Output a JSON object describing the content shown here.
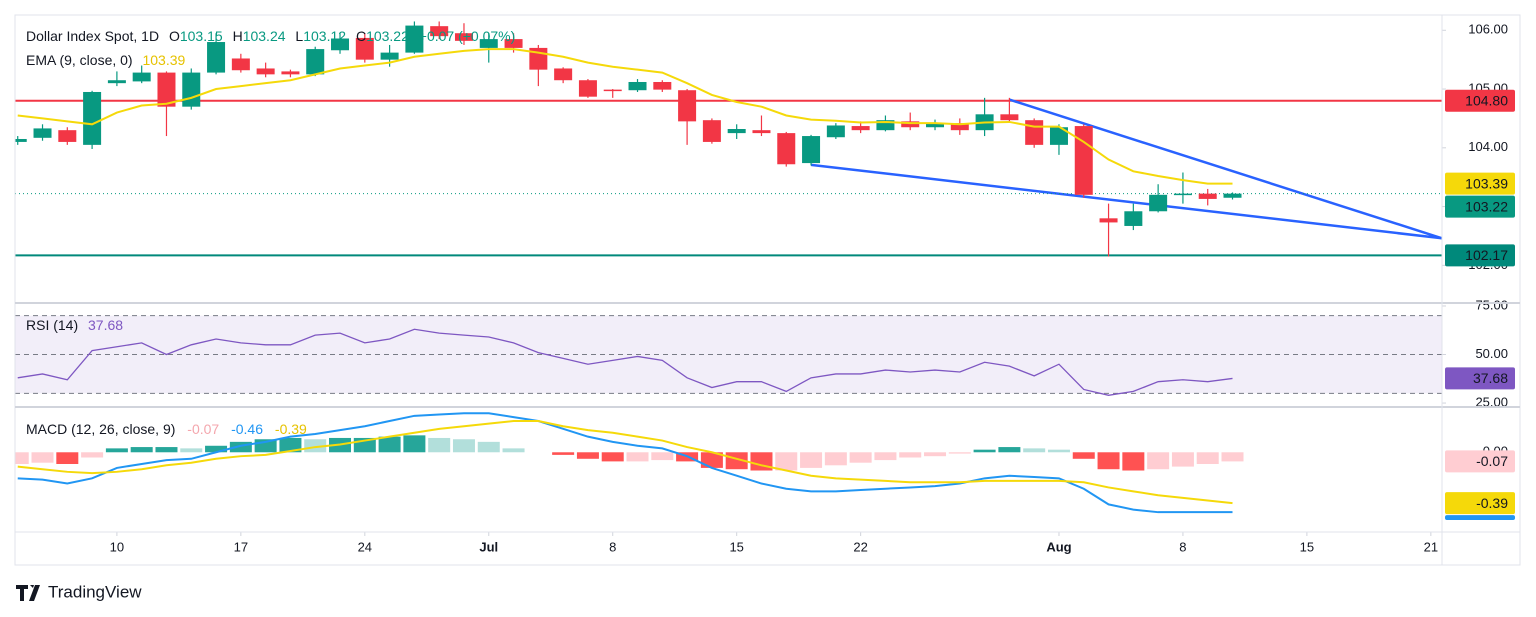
{
  "chart_data": [
    {
      "type": "candlestick",
      "title": "Dollar Index Spot, 1D",
      "ohlc_labels": [
        "O",
        "H",
        "L",
        "C"
      ],
      "change": "+0.07 (+0.07%)",
      "up_color": "#089981",
      "down_color": "#f23645",
      "open": [
        104.1,
        104.17,
        104.3,
        104.05,
        105.1,
        105.13,
        105.28,
        104.7,
        105.28,
        105.52,
        105.35,
        105.3,
        105.25,
        105.66,
        105.87,
        105.5,
        105.62,
        106.07,
        105.95,
        105.7,
        105.85,
        105.7,
        105.35,
        105.15,
        104.99,
        104.98,
        105.12,
        104.98,
        104.47,
        104.25,
        104.3,
        104.25,
        103.74,
        104.18,
        104.37,
        104.3,
        104.45,
        104.35,
        104.42,
        104.3,
        104.57,
        104.47,
        104.05,
        104.37,
        102.8,
        102.67,
        102.92,
        103.2,
        103.22,
        103.15
      ],
      "high": [
        104.2,
        104.4,
        104.35,
        104.97,
        105.3,
        105.4,
        105.3,
        105.35,
        105.95,
        105.6,
        105.45,
        105.33,
        105.72,
        105.95,
        105.95,
        105.75,
        106.15,
        106.15,
        106.12,
        105.95,
        105.95,
        105.75,
        105.37,
        105.17,
        105.0,
        105.17,
        105.15,
        105.0,
        104.5,
        104.4,
        104.55,
        104.27,
        104.22,
        104.42,
        104.45,
        104.55,
        104.6,
        104.48,
        104.5,
        104.85,
        104.85,
        104.5,
        104.4,
        104.4,
        103.05,
        103.05,
        103.38,
        103.58,
        103.3,
        103.24
      ],
      "low": [
        104.05,
        104.12,
        104.05,
        103.98,
        105.05,
        105.1,
        104.2,
        104.65,
        105.25,
        105.28,
        105.2,
        105.2,
        105.22,
        105.6,
        105.45,
        105.38,
        105.6,
        105.85,
        105.75,
        105.45,
        105.62,
        105.05,
        105.1,
        104.85,
        104.85,
        104.95,
        104.95,
        104.05,
        104.07,
        104.15,
        104.2,
        103.68,
        103.7,
        104.15,
        104.25,
        104.28,
        104.3,
        104.3,
        104.22,
        104.2,
        104.45,
        104.0,
        103.88,
        103.15,
        102.15,
        102.6,
        102.9,
        103.05,
        103.02,
        103.12
      ],
      "close": [
        104.15,
        104.33,
        104.1,
        104.95,
        105.15,
        105.28,
        104.7,
        105.28,
        105.8,
        105.32,
        105.25,
        105.25,
        105.68,
        105.86,
        105.5,
        105.62,
        106.08,
        105.9,
        105.82,
        105.85,
        105.7,
        105.33,
        105.15,
        104.87,
        104.98,
        105.12,
        104.99,
        104.45,
        104.1,
        104.32,
        104.25,
        103.72,
        104.2,
        104.38,
        104.3,
        104.47,
        104.35,
        104.42,
        104.3,
        104.57,
        104.47,
        104.05,
        104.35,
        103.2,
        102.73,
        102.92,
        103.2,
        103.22,
        103.13,
        103.22
      ],
      "overlays": [
        {
          "name": "EMA (9, close, 0)",
          "color": "#f5d90a",
          "values": [
            104.55,
            104.5,
            104.45,
            104.4,
            104.6,
            104.72,
            104.75,
            104.85,
            105.0,
            105.05,
            105.1,
            105.15,
            105.25,
            105.35,
            105.4,
            105.45,
            105.55,
            105.6,
            105.65,
            105.68,
            105.68,
            105.62,
            105.55,
            105.45,
            105.38,
            105.33,
            105.28,
            105.1,
            104.9,
            104.78,
            104.7,
            104.55,
            104.48,
            104.46,
            104.43,
            104.44,
            104.42,
            104.42,
            104.4,
            104.43,
            104.44,
            104.36,
            104.36,
            104.1,
            103.8,
            103.6,
            103.52,
            103.45,
            103.39,
            103.39
          ]
        }
      ],
      "levels": [
        {
          "value": 104.8,
          "label": "104.80",
          "color": "#f23645"
        },
        {
          "value": 102.17,
          "label": "102.17",
          "color": "#00897b"
        }
      ],
      "trendlines": [
        {
          "x": [
            40,
            57.45
          ],
          "y": [
            104.82,
            102.46
          ],
          "color": "#2962ff"
        },
        {
          "x": [
            32,
            57.45
          ],
          "y": [
            103.71,
            102.46
          ],
          "color": "#2962ff"
        }
      ],
      "xlim": [
        -0.11,
        57.45
      ],
      "xticks": [
        {
          "value": 4,
          "label": "10"
        },
        {
          "value": 9,
          "label": "17"
        },
        {
          "value": 14,
          "label": "24"
        },
        {
          "value": 19,
          "label": "Jul"
        },
        {
          "value": 24,
          "label": "8"
        },
        {
          "value": 29,
          "label": "15"
        },
        {
          "value": 34,
          "label": "22"
        },
        {
          "value": 42,
          "label": "Aug"
        },
        {
          "value": 47,
          "label": "8"
        },
        {
          "value": 52,
          "label": "15"
        },
        {
          "value": 57,
          "label": "21"
        }
      ],
      "ylim": [
        101.41,
        106.26
      ],
      "yticks": [
        {
          "value": 106,
          "label": "106.00"
        },
        {
          "value": 105,
          "label": "105.00"
        },
        {
          "value": 104,
          "label": "104.00"
        },
        {
          "value": 103,
          "label": "103.00"
        },
        {
          "value": 102,
          "label": "102.00"
        }
      ]
    },
    {
      "type": "line",
      "series": [
        {
          "name": "RSI (14)",
          "color": "#7e57c2",
          "values": [
            38,
            40,
            37,
            52,
            54,
            56,
            50,
            55,
            58,
            56,
            55,
            55,
            60,
            61,
            56,
            58,
            63,
            61,
            60,
            59,
            56,
            51,
            48,
            45,
            47,
            49,
            47,
            38,
            33,
            36,
            36,
            31,
            38,
            40,
            40,
            42,
            41,
            42,
            41,
            46,
            44,
            39,
            45,
            32,
            29,
            31,
            36,
            37,
            36,
            37.68
          ]
        }
      ],
      "bands": [
        30,
        50,
        70
      ],
      "ylim": [
        24,
        75.5
      ],
      "yticks": [
        {
          "value": 75,
          "label": "75.00"
        },
        {
          "value": 50,
          "label": "50.00"
        },
        {
          "value": 25,
          "label": "25.00"
        }
      ]
    },
    {
      "type": "macd",
      "title": "MACD (12, 26, close, 9)",
      "series": [
        {
          "name": "histogram",
          "color": "#ffcdd2",
          "colors": [
            "#26a69a",
            "#b2dfdb",
            "#ff5252",
            "#ffcdd2"
          ],
          "values": [
            -0.09,
            -0.08,
            -0.09,
            -0.04,
            0.03,
            0.04,
            0.04,
            0.03,
            0.05,
            0.08,
            0.1,
            0.11,
            0.1,
            0.11,
            0.11,
            0.12,
            0.13,
            0.11,
            0.1,
            0.08,
            0.03,
            0.0,
            -0.02,
            -0.05,
            -0.07,
            -0.07,
            -0.06,
            -0.07,
            -0.12,
            -0.13,
            -0.14,
            -0.14,
            -0.12,
            -0.1,
            -0.08,
            -0.06,
            -0.04,
            -0.03,
            -0.01,
            0.02,
            0.04,
            0.03,
            0.02,
            -0.05,
            -0.13,
            -0.14,
            -0.13,
            -0.11,
            -0.09,
            -0.07
          ]
        },
        {
          "name": "macd",
          "color": "#2196f3",
          "values": [
            -0.2,
            -0.21,
            -0.24,
            -0.2,
            -0.12,
            -0.09,
            -0.06,
            -0.05,
            0.0,
            0.05,
            0.08,
            0.12,
            0.14,
            0.17,
            0.2,
            0.24,
            0.28,
            0.29,
            0.3,
            0.3,
            0.27,
            0.24,
            0.18,
            0.12,
            0.08,
            0.05,
            0.03,
            -0.03,
            -0.12,
            -0.18,
            -0.24,
            -0.28,
            -0.3,
            -0.3,
            -0.29,
            -0.28,
            -0.27,
            -0.26,
            -0.24,
            -0.2,
            -0.18,
            -0.19,
            -0.2,
            -0.28,
            -0.4,
            -0.44,
            -0.46,
            -0.46,
            -0.46,
            -0.46
          ]
        },
        {
          "name": "signal",
          "color": "#f5d90a",
          "values": [
            -0.11,
            -0.13,
            -0.15,
            -0.16,
            -0.15,
            -0.13,
            -0.1,
            -0.08,
            -0.05,
            -0.03,
            -0.02,
            0.01,
            0.04,
            0.06,
            0.09,
            0.12,
            0.15,
            0.18,
            0.2,
            0.22,
            0.24,
            0.24,
            0.2,
            0.17,
            0.15,
            0.12,
            0.09,
            0.04,
            0.0,
            -0.05,
            -0.1,
            -0.14,
            -0.18,
            -0.2,
            -0.21,
            -0.22,
            -0.23,
            -0.23,
            -0.23,
            -0.22,
            -0.22,
            -0.22,
            -0.22,
            -0.23,
            -0.27,
            -0.3,
            -0.33,
            -0.35,
            -0.37,
            -0.39
          ]
        }
      ],
      "ylim": [
        -0.52,
        0.34
      ],
      "yticks": [
        {
          "value": 0,
          "label": "0.00"
        }
      ]
    }
  ],
  "footer": {
    "brand": "TradingView"
  }
}
